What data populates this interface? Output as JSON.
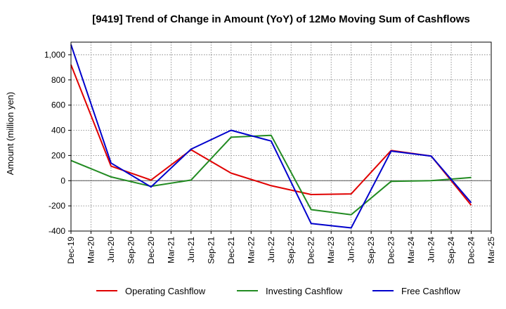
{
  "chart_data": {
    "type": "line",
    "title": "[9419]  Trend of Change in Amount (YoY) of 12Mo Moving Sum of Cashflows",
    "xlabel": "",
    "ylabel": "Amount (million yen)",
    "ylim": [
      -400,
      1100
    ],
    "yticks": [
      -400,
      -200,
      0,
      200,
      400,
      600,
      800,
      1000
    ],
    "ytick_labels": [
      "-400",
      "-200",
      "0",
      "200",
      "400",
      "600",
      "800",
      "1,000"
    ],
    "categories": [
      "Dec-19",
      "Mar-20",
      "Jun-20",
      "Sep-20",
      "Dec-20",
      "Mar-21",
      "Jun-21",
      "Sep-21",
      "Dec-21",
      "Mar-22",
      "Jun-22",
      "Sep-22",
      "Dec-22",
      "Mar-23",
      "Jun-23",
      "Sep-23",
      "Dec-23",
      "Mar-24",
      "Jun-24",
      "Sep-24",
      "Dec-24",
      "Mar-25"
    ],
    "series": [
      {
        "name": "Operating Cashflow",
        "color": "#e00000",
        "points": [
          [
            0,
            920
          ],
          [
            2,
            115
          ],
          [
            4,
            5
          ],
          [
            6,
            245
          ],
          [
            8,
            60
          ],
          [
            10,
            -40
          ],
          [
            12,
            -110
          ],
          [
            14,
            -105
          ],
          [
            16,
            240
          ],
          [
            18,
            195
          ],
          [
            20,
            -195
          ]
        ]
      },
      {
        "name": "Investing Cashflow",
        "color": "#228B22",
        "points": [
          [
            0,
            160
          ],
          [
            2,
            30
          ],
          [
            4,
            -45
          ],
          [
            6,
            5
          ],
          [
            8,
            345
          ],
          [
            10,
            360
          ],
          [
            12,
            -230
          ],
          [
            14,
            -270
          ],
          [
            16,
            -5
          ],
          [
            18,
            0
          ],
          [
            20,
            25
          ]
        ]
      },
      {
        "name": "Free Cashflow",
        "color": "#0000cc",
        "points": [
          [
            0,
            1080
          ],
          [
            2,
            140
          ],
          [
            4,
            -50
          ],
          [
            6,
            250
          ],
          [
            8,
            400
          ],
          [
            10,
            315
          ],
          [
            12,
            -340
          ],
          [
            14,
            -375
          ],
          [
            16,
            235
          ],
          [
            18,
            195
          ],
          [
            20,
            -175
          ]
        ]
      }
    ],
    "grid": true,
    "legend_position": "bottom"
  }
}
